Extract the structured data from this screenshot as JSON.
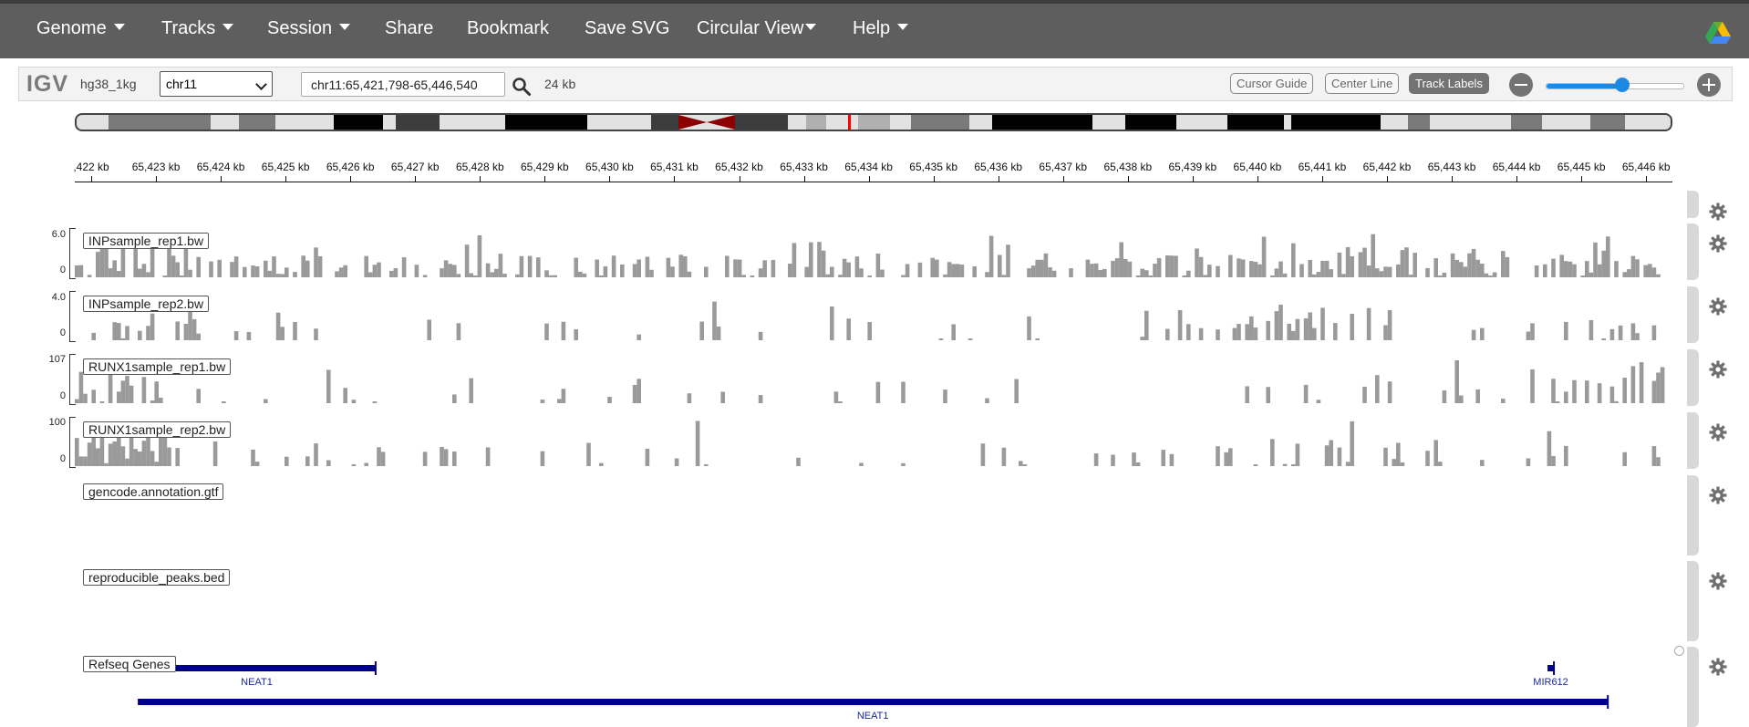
{
  "menu": {
    "genome": "Genome",
    "tracks": "Tracks",
    "session": "Session",
    "share": "Share",
    "bookmark": "Bookmark",
    "save_svg": "Save SVG",
    "circular_view": "Circular View",
    "help": "Help"
  },
  "navbar": {
    "app_logo": "IGV",
    "genome": "hg38_1kg",
    "chromosome": "chr11",
    "locus": "chr11:65,421,798-65,446,540",
    "window_size": "24 kb",
    "cursor_guide": "Cursor Guide",
    "center_line": "Center Line",
    "track_labels": "Track Labels",
    "zoom_level": 0.55
  },
  "ruler": {
    "ticks": [
      ",422 kb",
      "65,423 kb",
      "65,424 kb",
      "65,425 kb",
      "65,426 kb",
      "65,427 kb",
      "65,428 kb",
      "65,429 kb",
      "65,430 kb",
      "65,431 kb",
      "65,432 kb",
      "65,433 kb",
      "65,434 kb",
      "65,435 kb",
      "65,436 kb",
      "65,437 kb",
      "65,438 kb",
      "65,439 kb",
      "65,440 kb",
      "65,441 kb",
      "65,442 kb",
      "65,443 kb",
      "65,444 kb",
      "65,445 kb",
      "65,446 kb"
    ]
  },
  "tracks": {
    "inp_rep1": {
      "name": "INPsample_rep1.bw",
      "max": "6.0",
      "min": "0"
    },
    "inp_rep2": {
      "name": "INPsample_rep2.bw",
      "max": "4.0",
      "min": "0"
    },
    "runx_rep1": {
      "name": "RUNX1sample_rep1.bw",
      "max": "107",
      "min": "0"
    },
    "runx_rep2": {
      "name": "RUNX1sample_rep2.bw",
      "max": "100",
      "min": "0"
    },
    "gencode": {
      "name": "gencode.annotation.gtf"
    },
    "peaks": {
      "name": "reproducible_peaks.bed"
    },
    "refseq": {
      "name": "Refseq Genes",
      "genes": [
        {
          "name": "NEAT1",
          "start": 65422774,
          "end": 65426457,
          "row": 0
        },
        {
          "name": "MIR612",
          "start": 65444606,
          "end": 65444705,
          "row": 0
        },
        {
          "name": "NEAT1",
          "start": 65422774,
          "end": 65445540,
          "row": 1
        }
      ]
    }
  },
  "colors": {
    "menubar": "#5e5e5e",
    "signal": "#9a9a9a",
    "gene": "#00008b",
    "centromere": "#8b0000",
    "locus_marker": "#ff0000",
    "zoom_slider": "#1e88e5"
  }
}
